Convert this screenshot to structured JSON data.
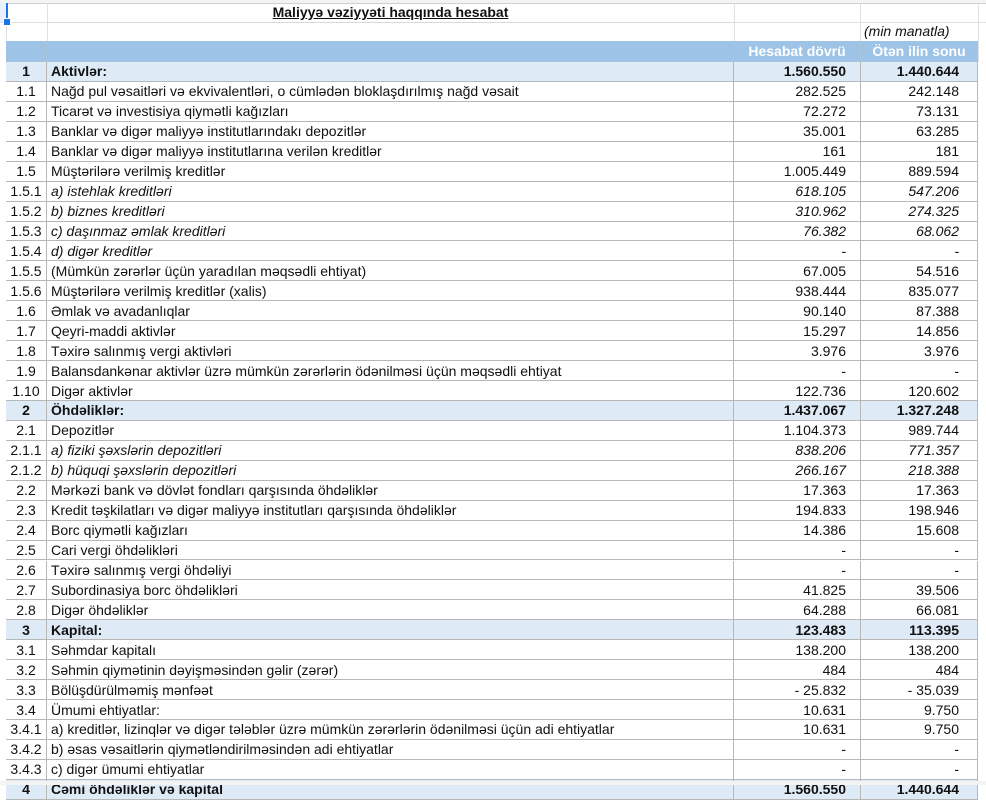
{
  "title": "Maliyyə vəziyyəti haqqında hesabat",
  "unit": "(min manatla)",
  "headers": {
    "num": "",
    "label": "",
    "current": "Hesabat dövrü",
    "previous": "Ötən ilin sonu"
  },
  "colors": {
    "header_bg": "#9dc3e6",
    "section_bg": "#deebf7"
  },
  "rows": [
    {
      "num": "1",
      "label": "Aktivlər:",
      "current": "1.560.550",
      "previous": "1.440.644",
      "style": "section"
    },
    {
      "num": "1.1",
      "label": "Nağd pul vəsaitləri və  ekvivalentləri, o cümlədən bloklaşdırılmış nağd vəsait",
      "current": "282.525",
      "previous": "242.148",
      "style": ""
    },
    {
      "num": "1.2",
      "label": "Ticarət və investisiya qiymətli kağızları",
      "current": "72.272",
      "previous": "73.131",
      "style": ""
    },
    {
      "num": "1.3",
      "label": "Banklar və digər maliyyə institutlarındakı depozitlər",
      "current": "35.001",
      "previous": "63.285",
      "style": ""
    },
    {
      "num": "1.4",
      "label": "Banklar və digər maliyyə institutlarına verilən kreditlər",
      "current": "161",
      "previous": "181",
      "style": ""
    },
    {
      "num": "1.5",
      "label": "Müştərilərə verilmiş kreditlər",
      "current": "1.005.449",
      "previous": "889.594",
      "style": ""
    },
    {
      "num": "1.5.1",
      "label": "a) istehlak kreditləri",
      "current": "618.105",
      "previous": "547.206",
      "style": "italic"
    },
    {
      "num": "1.5.2",
      "label": "b) biznes kreditləri",
      "current": "310.962",
      "previous": "274.325",
      "style": "italic"
    },
    {
      "num": "1.5.3",
      "label": "c) daşınmaz əmlak kreditləri",
      "current": "76.382",
      "previous": "68.062",
      "style": "italic"
    },
    {
      "num": "1.5.4",
      "label": "d) digər kreditlər",
      "current": "-",
      "previous": "-",
      "style": "italic"
    },
    {
      "num": "1.5.5",
      "label": "(Mümkün zərərlər üçün yaradılan məqsədli ehtiyat)",
      "current": "67.005",
      "previous": "54.516",
      "style": ""
    },
    {
      "num": "1.5.6",
      "label": "Müştərilərə verilmiş kreditlər (xalis)",
      "current": "938.444",
      "previous": "835.077",
      "style": ""
    },
    {
      "num": "1.6",
      "label": "Əmlak və avadanlıqlar",
      "current": "90.140",
      "previous": "87.388",
      "style": ""
    },
    {
      "num": "1.7",
      "label": "Qeyri-maddi aktivlər",
      "current": "15.297",
      "previous": "14.856",
      "style": ""
    },
    {
      "num": "1.8",
      "label": "Təxirə salınmış vergi aktivləri",
      "current": "3.976",
      "previous": "3.976",
      "style": ""
    },
    {
      "num": "1.9",
      "label": "Balansdankənar aktivlər üzrə mümkün zərərlərin ödənilməsi üçün məqsədli ehtiyat",
      "current": "-",
      "previous": "-",
      "style": ""
    },
    {
      "num": "1.10",
      "label": "Digər aktivlər",
      "current": "122.736",
      "previous": "120.602",
      "style": ""
    },
    {
      "num": "2",
      "label": "Öhdəliklər:",
      "current": "1.437.067",
      "previous": "1.327.248",
      "style": "section"
    },
    {
      "num": "2.1",
      "label": "Depozitlər",
      "current": "1.104.373",
      "previous": "989.744",
      "style": ""
    },
    {
      "num": "2.1.1",
      "label": "a) fiziki şəxslərin depozitləri",
      "current": "838.206",
      "previous": "771.357",
      "style": "italic"
    },
    {
      "num": "2.1.2",
      "label": "b) hüquqi şəxslərin depozitləri",
      "current": "266.167",
      "previous": "218.388",
      "style": "italic"
    },
    {
      "num": "2.2",
      "label": "Mərkəzi bank və dövlət fondları qarşısında öhdəliklər",
      "current": "17.363",
      "previous": "17.363",
      "style": ""
    },
    {
      "num": "2.3",
      "label": "Kredit təşkilatları və digər maliyyə institutları qarşısında öhdəliklər",
      "current": "194.833",
      "previous": "198.946",
      "style": ""
    },
    {
      "num": "2.4",
      "label": "Borc qiymətli kağızları",
      "current": "14.386",
      "previous": "15.608",
      "style": ""
    },
    {
      "num": "2.5",
      "label": "Cari vergi öhdəlikləri",
      "current": "-",
      "previous": "-",
      "style": ""
    },
    {
      "num": "2.6",
      "label": "Təxirə salınmış vergi öhdəliyi",
      "current": "-",
      "previous": "-",
      "style": ""
    },
    {
      "num": "2.7",
      "label": "Subordinasiya borc öhdəlikləri",
      "current": "41.825",
      "previous": "39.506",
      "style": ""
    },
    {
      "num": "2.8",
      "label": "Digər öhdəliklər",
      "current": "64.288",
      "previous": "66.081",
      "style": ""
    },
    {
      "num": "3",
      "label": "Kapital:",
      "current": "123.483",
      "previous": "113.395",
      "style": "section"
    },
    {
      "num": "3.1",
      "label": "Səhmdar kapitalı",
      "current": "138.200",
      "previous": "138.200",
      "style": ""
    },
    {
      "num": "3.2",
      "label": "Səhmin qiymətinin dəyişməsindən gəlir (zərər)",
      "current": "484",
      "previous": "484",
      "style": ""
    },
    {
      "num": "3.3",
      "label": "Bölüşdürülməmiş mənfəət",
      "current": "- 25.832",
      "previous": "- 35.039",
      "style": ""
    },
    {
      "num": "3.4",
      "label": "Ümumi ehtiyatlar:",
      "current": "10.631",
      "previous": "9.750",
      "style": ""
    },
    {
      "num": "3.4.1",
      "label": "a) kreditlər, lizinqlər və digər tələblər üzrə mümkün zərərlərin ödənilməsi üçün adi ehtiyatlar",
      "current": "10.631",
      "previous": "9.750",
      "style": ""
    },
    {
      "num": "3.4.2",
      "label": "b) əsas vəsaitlərin qiymətləndirilməsindən adi ehtiyatlar",
      "current": "-",
      "previous": "-",
      "style": ""
    },
    {
      "num": "3.4.3",
      "label": "c) digər ümumi ehtiyatlar",
      "current": "-",
      "previous": "-",
      "style": ""
    },
    {
      "num": "4",
      "label": "Cəmi öhdəliklər və kapital",
      "current": "1.560.550",
      "previous": "1.440.644",
      "style": "section"
    }
  ]
}
